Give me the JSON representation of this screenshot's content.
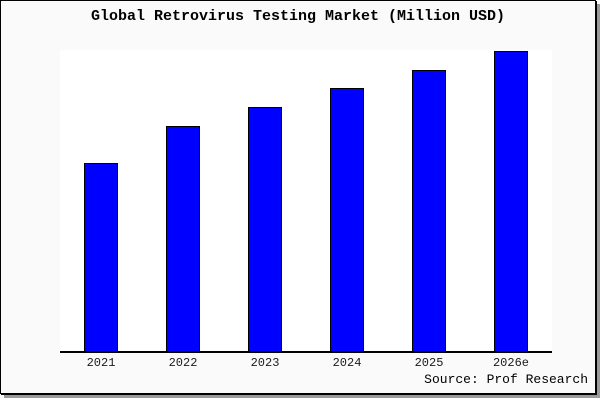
{
  "page": {
    "background": "#ffffff"
  },
  "card": {
    "background": "#fafafa",
    "border_color": "#000000",
    "shadow_color": "#9a9a9a"
  },
  "title": "Global Retrovirus Testing Market (Million USD)",
  "source_credit": "Source: Prof Research",
  "chart_data": {
    "type": "bar",
    "title": "Global Retrovirus Testing Market (Million USD)",
    "categories": [
      "2021",
      "2022",
      "2023",
      "2024",
      "2025",
      "2026e"
    ],
    "values": [
      62.7,
      75,
      81.3,
      87.7,
      93.7,
      100
    ],
    "xlabel": "",
    "ylabel": "",
    "ylim": [
      0,
      100
    ],
    "y_axis_visible": false,
    "grid": false,
    "legend": "none",
    "bar_color": "#0000fe",
    "bar_border_color": "#000000",
    "plot_background": "#ffffff",
    "axis_line_color": "#000000"
  }
}
